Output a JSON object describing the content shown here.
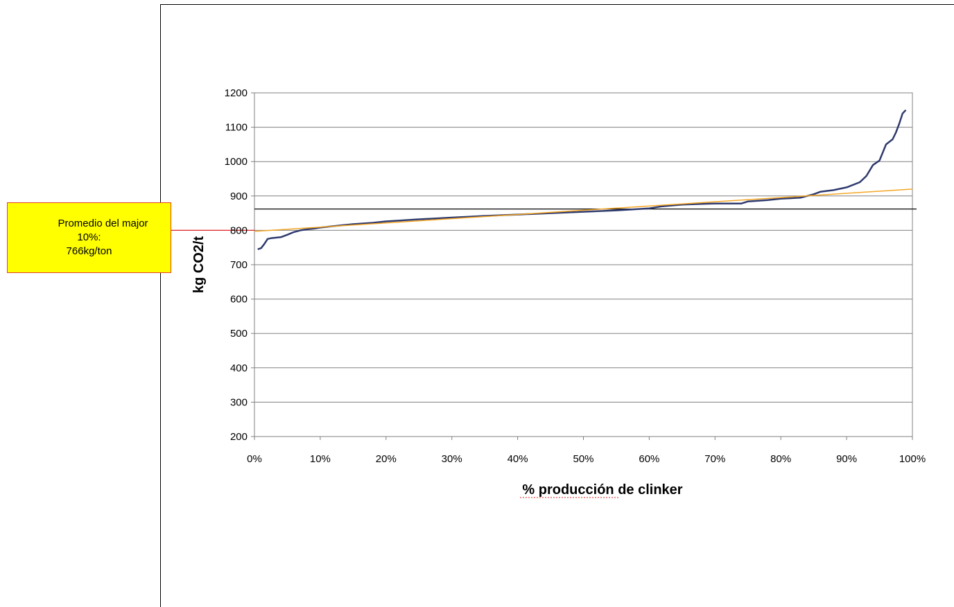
{
  "callout": {
    "line1": "Promedio del major",
    "line2": "10%:",
    "line3": "766kg/ton",
    "border_color": "#e04020",
    "fill_color": "#ffff00"
  },
  "chart_data": {
    "type": "line",
    "title": "",
    "xlabel": "% producción de clinker",
    "ylabel": "kg CO2/t",
    "xlim": [
      0,
      100
    ],
    "ylim": [
      200,
      1200
    ],
    "x_ticks": [
      "0%",
      "10%",
      "20%",
      "30%",
      "40%",
      "50%",
      "60%",
      "70%",
      "80%",
      "90%",
      "100%"
    ],
    "y_ticks": [
      "200",
      "300",
      "400",
      "500",
      "600",
      "700",
      "800",
      "900",
      "1000",
      "1100",
      "1200"
    ],
    "grid": "horizontal",
    "legend": "none",
    "series": [
      {
        "color": "#2e3a6e",
        "x": [
          0.5,
          1,
          1.5,
          2,
          2.5,
          3,
          4,
          5,
          6,
          7,
          8,
          9,
          10,
          12,
          15,
          18,
          20,
          25,
          30,
          35,
          40,
          45,
          50,
          55,
          60,
          62,
          65,
          70,
          74,
          75,
          78,
          80,
          83,
          84,
          85,
          86,
          88,
          90,
          92,
          93,
          94,
          95,
          96,
          97,
          97.5,
          98,
          98.5,
          99
        ],
        "y": [
          745,
          748,
          760,
          775,
          777,
          778,
          780,
          787,
          795,
          800,
          803,
          805,
          808,
          812,
          818,
          822,
          826,
          832,
          837,
          842,
          846,
          850,
          854,
          858,
          864,
          870,
          875,
          878,
          878,
          884,
          888,
          892,
          895,
          900,
          905,
          912,
          917,
          925,
          940,
          958,
          990,
          1003,
          1050,
          1065,
          1085,
          1110,
          1140,
          1150
        ]
      },
      {
        "color": "#f5a623",
        "type": "trend",
        "x": [
          0,
          100
        ],
        "y": [
          797,
          920
        ]
      }
    ],
    "reference_lines": [
      {
        "y": 862,
        "color": "#000000"
      },
      {
        "y": 800,
        "color": "#e02020",
        "connects": "callout"
      }
    ]
  }
}
